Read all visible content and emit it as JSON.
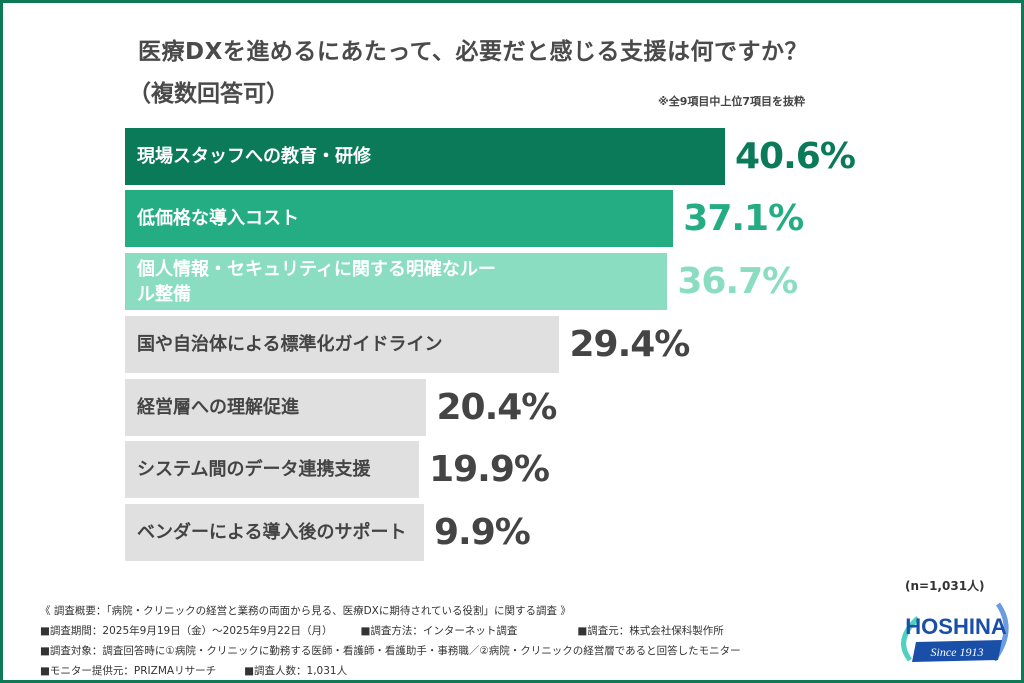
{
  "title_line1": "医療DXを進めるにあたって、必要だと感じる支援は何ですか？",
  "title_line2": "（複数回答可）",
  "note": "※全9項目中上位7項目を抜粋",
  "sample_size": "(n=1,031人)",
  "chart_data": {
    "type": "bar",
    "orientation": "horizontal",
    "unit": "%",
    "categories": [
      "現場スタッフへの教育・研修",
      "低価格な導入コスト",
      "個人情報・セキュリティに関する明確なルール整備",
      "国や自治体による標準化ガイドライン",
      "経営層への理解促進",
      "システム間のデータ連携支援",
      "ベンダーによる導入後のサポート"
    ],
    "values": [
      40.6,
      37.1,
      36.7,
      29.4,
      20.4,
      19.9,
      9.9
    ],
    "value_labels": [
      "40.6%",
      "37.1%",
      "36.7%",
      "29.4%",
      "20.4%",
      "19.9%",
      "9.9%"
    ],
    "bar_colors": [
      "#0b7a58",
      "#24ac82",
      "#8addc0",
      "#e0e0e0",
      "#e0e0e0",
      "#e0e0e0",
      "#e0e0e0"
    ],
    "label_colors": [
      "#ffffff",
      "#ffffff",
      "#ffffff",
      "#444444",
      "#444444",
      "#444444",
      "#444444"
    ],
    "value_colors": [
      "#0b7a58",
      "#24ac82",
      "#8addc0",
      "#444444",
      "#444444",
      "#444444",
      "#444444"
    ]
  },
  "footer": {
    "overview": "《 調査概要：「病院・クリニックの経営と業務の両面から見る、医療DXに期待されている役割」に関する調査 》",
    "period": "■調査期間：2025年9月19日（金）〜2025年9月22日（月）",
    "method": "■調査方法：インターネット調査",
    "source": "■調査元：株式会社保科製作所",
    "target": "■調査対象：調査回答時に①病院・クリニックに勤務する医師・看護師・看護助手・事務職／②病院・クリニックの経営層であると回答したモニター",
    "provider": "■モニター提供元：PRIZMAリサーチ",
    "count": "■調査人数：1,031人"
  },
  "logo": {
    "name": "HOSHINA",
    "tagline": "Since 1913",
    "color": "#1a4fa8"
  }
}
